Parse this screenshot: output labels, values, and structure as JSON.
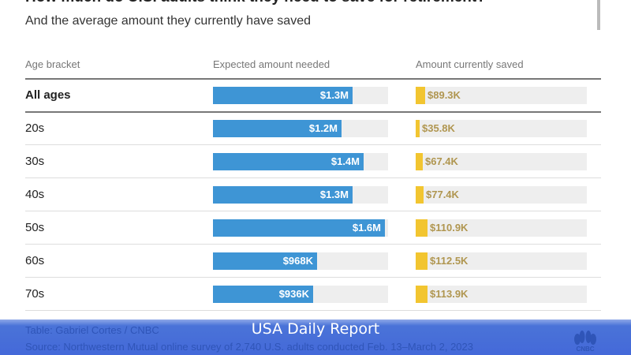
{
  "chart_data": {
    "type": "table",
    "title": "How much do U.S. adults think they need to save for retirement?",
    "subtitle": "And the average amount they currently have saved",
    "columns": [
      "Age bracket",
      "Expected amount needed",
      "Amount currently saved"
    ],
    "rows": [
      {
        "label": "All ages",
        "needed": 1.3,
        "needed_label": "$1.3M",
        "saved": 89.3,
        "saved_label": "$89.3K",
        "bold": true
      },
      {
        "label": "20s",
        "needed": 1.2,
        "needed_label": "$1.2M",
        "saved": 35.8,
        "saved_label": "$35.8K"
      },
      {
        "label": "30s",
        "needed": 1.4,
        "needed_label": "$1.4M",
        "saved": 67.4,
        "saved_label": "$67.4K"
      },
      {
        "label": "40s",
        "needed": 1.3,
        "needed_label": "$1.3M",
        "saved": 77.4,
        "saved_label": "$77.4K"
      },
      {
        "label": "50s",
        "needed": 1.6,
        "needed_label": "$1.6M",
        "saved": 110.9,
        "saved_label": "$110.9K"
      },
      {
        "label": "60s",
        "needed": 0.968,
        "needed_label": "$968K",
        "saved": 112.5,
        "saved_label": "$112.5K"
      },
      {
        "label": "70s",
        "needed": 0.936,
        "needed_label": "$936K",
        "saved": 113.9,
        "saved_label": "$113.9K"
      }
    ],
    "needed_max": 1.63,
    "saved_max": 1630,
    "colors": {
      "needed": "#3e95d5",
      "saved": "#f2c530",
      "track": "#eeeeee"
    }
  },
  "footer": {
    "credit": "Table: Gabriel Cortes / CNBC",
    "source": "Source: Northwestern Mutual online survey of 2,740 U.S. adults conducted Feb. 13–March 2, 2023",
    "overlay": "USA Daily Report",
    "logo": "CNBC"
  }
}
